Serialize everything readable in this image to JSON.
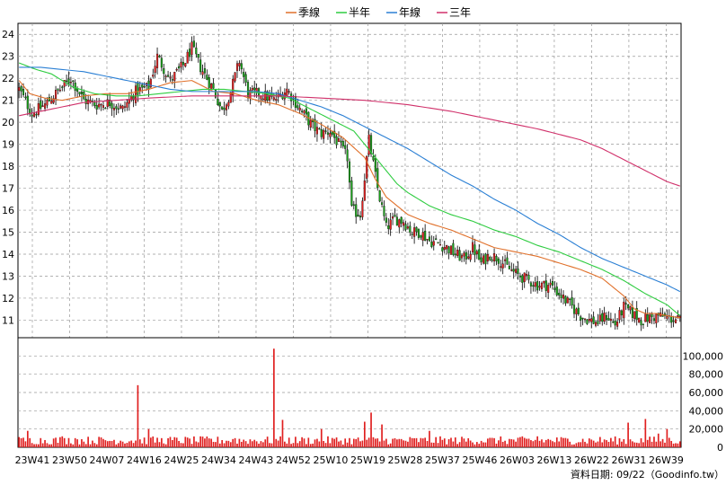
{
  "chart_data": {
    "type": "candlestick",
    "legend": [
      {
        "name": "季線",
        "color": "#e0702a"
      },
      {
        "name": "半年",
        "color": "#2ecc40"
      },
      {
        "name": "年線",
        "color": "#2a7fd4"
      },
      {
        "name": "三年",
        "color": "#d0306a"
      }
    ],
    "price_axis": {
      "ylim": [
        10.2,
        24.5
      ],
      "ticks": [
        11,
        12,
        13,
        14,
        15,
        16,
        17,
        18,
        19,
        20,
        21,
        22,
        23,
        24
      ]
    },
    "volume_axis": {
      "ylim": [
        0,
        120000
      ],
      "ticks": [
        0,
        20000,
        40000,
        60000,
        80000,
        100000
      ],
      "tick_labels": [
        "0",
        "20,000",
        "40,000",
        "60,000",
        "80,000",
        "100,000"
      ]
    },
    "x_tick_labels": [
      "23W41",
      "23W50",
      "24W07",
      "24W16",
      "24W25",
      "24W34",
      "24W43",
      "24W52",
      "25W10",
      "25W19",
      "25W28",
      "25W37",
      "25W46",
      "26W03",
      "26W13",
      "26W22",
      "26W31",
      "26W39"
    ],
    "grid": true,
    "series_ma": {
      "季線": [
        [
          0,
          21.9
        ],
        [
          5,
          21.3
        ],
        [
          12,
          21.1
        ],
        [
          20,
          21.0
        ],
        [
          30,
          21.2
        ],
        [
          40,
          21.3
        ],
        [
          50,
          21.3
        ],
        [
          60,
          21.5
        ],
        [
          70,
          21.8
        ],
        [
          80,
          21.9
        ],
        [
          90,
          21.4
        ],
        [
          100,
          21.3
        ],
        [
          110,
          21.0
        ],
        [
          120,
          20.8
        ],
        [
          130,
          20.4
        ],
        [
          140,
          19.9
        ],
        [
          150,
          19.3
        ],
        [
          160,
          18.4
        ],
        [
          165,
          17.4
        ],
        [
          170,
          16.6
        ],
        [
          175,
          16.2
        ],
        [
          180,
          15.8
        ],
        [
          190,
          15.4
        ],
        [
          200,
          15.1
        ],
        [
          210,
          14.7
        ],
        [
          220,
          14.3
        ],
        [
          230,
          14.1
        ],
        [
          240,
          13.9
        ],
        [
          250,
          13.6
        ],
        [
          260,
          13.3
        ],
        [
          270,
          12.9
        ],
        [
          275,
          12.5
        ],
        [
          280,
          12.1
        ],
        [
          285,
          11.5
        ],
        [
          290,
          11.3
        ],
        [
          295,
          11.3
        ],
        [
          300,
          11.2
        ],
        [
          306,
          11.1
        ]
      ],
      "半年": [
        [
          0,
          22.7
        ],
        [
          8,
          22.4
        ],
        [
          15,
          22.2
        ],
        [
          25,
          21.6
        ],
        [
          35,
          21.3
        ],
        [
          45,
          21.2
        ],
        [
          55,
          21.2
        ],
        [
          65,
          21.3
        ],
        [
          75,
          21.4
        ],
        [
          85,
          21.5
        ],
        [
          95,
          21.5
        ],
        [
          105,
          21.4
        ],
        [
          115,
          21.3
        ],
        [
          125,
          21.1
        ],
        [
          135,
          20.6
        ],
        [
          145,
          20.1
        ],
        [
          155,
          19.6
        ],
        [
          160,
          19.0
        ],
        [
          165,
          18.4
        ],
        [
          170,
          17.8
        ],
        [
          175,
          17.2
        ],
        [
          180,
          16.8
        ],
        [
          190,
          16.2
        ],
        [
          200,
          15.8
        ],
        [
          210,
          15.5
        ],
        [
          220,
          15.1
        ],
        [
          230,
          14.8
        ],
        [
          240,
          14.4
        ],
        [
          250,
          14.1
        ],
        [
          260,
          13.7
        ],
        [
          270,
          13.3
        ],
        [
          280,
          12.8
        ],
        [
          290,
          12.2
        ],
        [
          300,
          11.7
        ],
        [
          306,
          11.2
        ]
      ],
      "年線": [
        [
          0,
          22.5
        ],
        [
          10,
          22.5
        ],
        [
          20,
          22.4
        ],
        [
          30,
          22.3
        ],
        [
          40,
          22.1
        ],
        [
          50,
          21.9
        ],
        [
          60,
          21.7
        ],
        [
          70,
          21.5
        ],
        [
          80,
          21.4
        ],
        [
          90,
          21.4
        ],
        [
          100,
          21.4
        ],
        [
          110,
          21.4
        ],
        [
          120,
          21.3
        ],
        [
          130,
          21.0
        ],
        [
          140,
          20.7
        ],
        [
          150,
          20.3
        ],
        [
          160,
          19.8
        ],
        [
          170,
          19.3
        ],
        [
          180,
          18.8
        ],
        [
          190,
          18.2
        ],
        [
          200,
          17.6
        ],
        [
          210,
          17.1
        ],
        [
          220,
          16.5
        ],
        [
          230,
          16.0
        ],
        [
          240,
          15.4
        ],
        [
          250,
          14.9
        ],
        [
          260,
          14.3
        ],
        [
          270,
          13.8
        ],
        [
          280,
          13.4
        ],
        [
          290,
          13.0
        ],
        [
          300,
          12.6
        ],
        [
          306,
          12.3
        ]
      ],
      "三年": [
        [
          0,
          20.3
        ],
        [
          15,
          20.6
        ],
        [
          30,
          20.9
        ],
        [
          45,
          21.0
        ],
        [
          60,
          21.1
        ],
        [
          80,
          21.2
        ],
        [
          100,
          21.2
        ],
        [
          120,
          21.2
        ],
        [
          140,
          21.1
        ],
        [
          160,
          21.0
        ],
        [
          180,
          20.8
        ],
        [
          200,
          20.5
        ],
        [
          220,
          20.1
        ],
        [
          240,
          19.7
        ],
        [
          260,
          19.2
        ],
        [
          270,
          18.8
        ],
        [
          280,
          18.3
        ],
        [
          290,
          17.8
        ],
        [
          300,
          17.3
        ],
        [
          306,
          17.1
        ]
      ]
    },
    "price_path": [
      [
        0,
        21.5
      ],
      [
        6,
        20.4
      ],
      [
        12,
        20.8
      ],
      [
        18,
        21.4
      ],
      [
        24,
        22.0
      ],
      [
        30,
        21.0
      ],
      [
        36,
        20.8
      ],
      [
        42,
        20.9
      ],
      [
        48,
        20.6
      ],
      [
        54,
        21.4
      ],
      [
        60,
        21.6
      ],
      [
        64,
        23.0
      ],
      [
        70,
        21.9
      ],
      [
        76,
        22.6
      ],
      [
        80,
        23.4
      ],
      [
        84,
        22.5
      ],
      [
        90,
        21.5
      ],
      [
        94,
        20.5
      ],
      [
        98,
        21.4
      ],
      [
        102,
        22.8
      ],
      [
        106,
        21.3
      ],
      [
        112,
        21.3
      ],
      [
        118,
        21.0
      ],
      [
        124,
        21.5
      ],
      [
        130,
        20.6
      ],
      [
        136,
        19.8
      ],
      [
        140,
        19.5
      ],
      [
        144,
        19.6
      ],
      [
        148,
        19.0
      ],
      [
        152,
        18.4
      ],
      [
        154,
        16.0
      ],
      [
        158,
        15.8
      ],
      [
        162,
        19.2
      ],
      [
        166,
        17.0
      ],
      [
        170,
        15.2
      ],
      [
        174,
        15.6
      ],
      [
        178,
        15.5
      ],
      [
        182,
        15.0
      ],
      [
        186,
        15.0
      ],
      [
        190,
        14.6
      ],
      [
        194,
        14.5
      ],
      [
        198,
        14.3
      ],
      [
        202,
        14.0
      ],
      [
        206,
        13.8
      ],
      [
        210,
        14.3
      ],
      [
        214,
        13.6
      ],
      [
        218,
        14.0
      ],
      [
        222,
        13.8
      ],
      [
        226,
        13.4
      ],
      [
        230,
        13.1
      ],
      [
        236,
        12.8
      ],
      [
        240,
        12.6
      ],
      [
        246,
        12.6
      ],
      [
        252,
        12.0
      ],
      [
        256,
        11.6
      ],
      [
        260,
        11.2
      ],
      [
        264,
        11.0
      ],
      [
        268,
        10.9
      ],
      [
        272,
        11.2
      ],
      [
        276,
        10.8
      ],
      [
        280,
        11.6
      ],
      [
        284,
        11.3
      ],
      [
        288,
        11.0
      ],
      [
        292,
        11.1
      ],
      [
        296,
        11.2
      ],
      [
        300,
        11.1
      ],
      [
        306,
        11.0
      ]
    ],
    "volume_spikes": [
      [
        4,
        18000
      ],
      [
        20,
        12000
      ],
      [
        26,
        10000
      ],
      [
        55,
        68000
      ],
      [
        60,
        20000
      ],
      [
        100,
        10000
      ],
      [
        118,
        108000
      ],
      [
        122,
        30000
      ],
      [
        140,
        20000
      ],
      [
        160,
        28000
      ],
      [
        163,
        38000
      ],
      [
        168,
        25000
      ],
      [
        190,
        18000
      ],
      [
        240,
        12000
      ],
      [
        282,
        27000
      ],
      [
        290,
        31000
      ],
      [
        296,
        15000
      ],
      [
        300,
        20000
      ]
    ],
    "footer": "資料日期: 09/22（Goodinfo.tw）"
  }
}
